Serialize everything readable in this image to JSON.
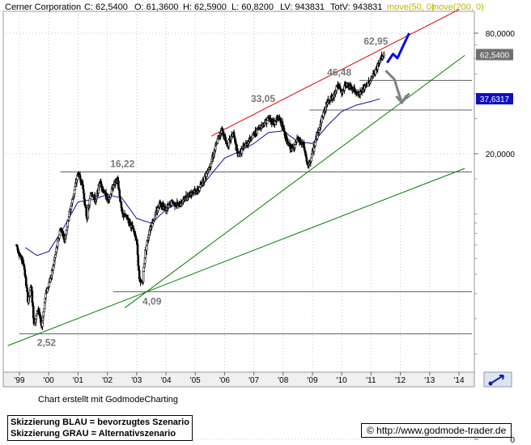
{
  "header": {
    "instrument": "Cerner Corporation",
    "close_label": "C: 62,5400",
    "open_label": "O: 61,3600",
    "high_label": "H: 62,5900",
    "low_label": "L: 60,8200",
    "lv_label": "LV: 943831",
    "totv_label": "TotV: 943831",
    "ma50_label": "move(50, 0)",
    "ma200_label": "move(200, 0)"
  },
  "colors": {
    "price": "#000000",
    "ma50": "#b8b800",
    "ma200": "#b8b800",
    "ma_line": "#1010a0",
    "resistance": "#dd0000",
    "support": "#008000",
    "blue_scenario": "#0000ee",
    "grey_scenario": "#808080"
  },
  "chart_data": {
    "type": "candlestick",
    "x_ticks": [
      "'99",
      "'00",
      "'01",
      "'02",
      "'03",
      "'04",
      "'05",
      "'06",
      "'07",
      "'08",
      "'09",
      "'10",
      "'11",
      "'12",
      "'13",
      "'14"
    ],
    "y_axis": {
      "scale": "log",
      "ticks": [
        {
          "label": "80,0000",
          "value": 80
        },
        {
          "label": "20,0000",
          "value": 20
        },
        {
          "label": "0",
          "value": 0.75
        }
      ],
      "last_price_label": "62,5400",
      "last_price_value": 62.54,
      "ma_value_label": "37,6317",
      "ma_value": 37.6317
    },
    "price_path": [
      [
        1998.9,
        7.0
      ],
      [
        1999.0,
        6.3
      ],
      [
        1999.15,
        5.6
      ],
      [
        1999.3,
        3.6
      ],
      [
        1999.4,
        4.4
      ],
      [
        1999.5,
        2.8
      ],
      [
        1999.65,
        3.4
      ],
      [
        1999.75,
        2.7
      ],
      [
        1999.9,
        4.0
      ],
      [
        2000.1,
        5.0
      ],
      [
        2000.25,
        6.5
      ],
      [
        2000.4,
        8.5
      ],
      [
        2000.55,
        7.5
      ],
      [
        2000.7,
        10.0
      ],
      [
        2000.85,
        12.5
      ],
      [
        2001.0,
        16.0
      ],
      [
        2001.15,
        14.0
      ],
      [
        2001.3,
        9.5
      ],
      [
        2001.45,
        13.0
      ],
      [
        2001.6,
        11.5
      ],
      [
        2001.75,
        14.5
      ],
      [
        2001.9,
        12.8
      ],
      [
        2002.05,
        11.5
      ],
      [
        2002.2,
        14.0
      ],
      [
        2002.35,
        15.0
      ],
      [
        2002.5,
        10.0
      ],
      [
        2002.7,
        9.5
      ],
      [
        2002.85,
        8.5
      ],
      [
        2003.0,
        7.5
      ],
      [
        2003.1,
        4.5
      ],
      [
        2003.2,
        4.6
      ],
      [
        2003.3,
        6.5
      ],
      [
        2003.45,
        8.5
      ],
      [
        2003.6,
        9.5
      ],
      [
        2003.8,
        11.5
      ],
      [
        2004.0,
        10.5
      ],
      [
        2004.2,
        11.5
      ],
      [
        2004.45,
        11.0
      ],
      [
        2004.65,
        12.0
      ],
      [
        2004.9,
        13.0
      ],
      [
        2005.1,
        13.0
      ],
      [
        2005.3,
        15.0
      ],
      [
        2005.5,
        17.5
      ],
      [
        2005.75,
        23.0
      ],
      [
        2005.9,
        26.5
      ],
      [
        2006.1,
        22.0
      ],
      [
        2006.3,
        25.5
      ],
      [
        2006.45,
        19.5
      ],
      [
        2006.6,
        21.0
      ],
      [
        2006.75,
        22.5
      ],
      [
        2006.9,
        24.0
      ],
      [
        2007.1,
        26.0
      ],
      [
        2007.3,
        28.0
      ],
      [
        2007.5,
        30.0
      ],
      [
        2007.7,
        28.5
      ],
      [
        2007.85,
        30.5
      ],
      [
        2008.0,
        27.0
      ],
      [
        2008.15,
        22.5
      ],
      [
        2008.3,
        21.0
      ],
      [
        2008.5,
        23.5
      ],
      [
        2008.7,
        22.0
      ],
      [
        2008.85,
        17.0
      ],
      [
        2008.95,
        19.0
      ],
      [
        2009.15,
        24.5
      ],
      [
        2009.35,
        31.0
      ],
      [
        2009.55,
        37.5
      ],
      [
        2009.7,
        38.0
      ],
      [
        2009.85,
        44.5
      ],
      [
        2010.0,
        40.0
      ],
      [
        2010.15,
        45.0
      ],
      [
        2010.3,
        42.5
      ],
      [
        2010.45,
        41.0
      ],
      [
        2010.6,
        39.5
      ],
      [
        2010.8,
        43.0
      ],
      [
        2010.95,
        46.0
      ],
      [
        2011.1,
        50.0
      ],
      [
        2011.25,
        56.0
      ],
      [
        2011.35,
        60.0
      ],
      [
        2011.45,
        62.54
      ]
    ],
    "ma_path": [
      [
        1999.2,
        6.8
      ],
      [
        1999.6,
        6.2
      ],
      [
        2000.0,
        6.5
      ],
      [
        2000.5,
        8.5
      ],
      [
        2001.0,
        11.5
      ],
      [
        2001.5,
        11.8
      ],
      [
        2002.0,
        12.5
      ],
      [
        2002.5,
        12.0
      ],
      [
        2003.0,
        9.5
      ],
      [
        2003.5,
        9.0
      ],
      [
        2004.0,
        10.5
      ],
      [
        2004.5,
        11.5
      ],
      [
        2005.0,
        12.5
      ],
      [
        2005.5,
        15.5
      ],
      [
        2006.0,
        19.0
      ],
      [
        2006.5,
        20.5
      ],
      [
        2007.0,
        22.5
      ],
      [
        2007.5,
        25.5
      ],
      [
        2008.0,
        26.0
      ],
      [
        2008.5,
        23.0
      ],
      [
        2009.0,
        22.5
      ],
      [
        2009.5,
        27.5
      ],
      [
        2010.0,
        32.5
      ],
      [
        2010.5,
        35.0
      ],
      [
        2011.0,
        36.5
      ],
      [
        2011.3,
        37.63
      ]
    ],
    "horizontal_levels": [
      {
        "value": 2.52,
        "label": "2,52",
        "x_start": 1999.0
      },
      {
        "value": 4.09,
        "label": "4,09",
        "x_start": 2002.2
      },
      {
        "value": 16.22,
        "label": "16,22",
        "x_start": 2000.4
      },
      {
        "value": 33.05,
        "label": "33,05",
        "x_start": 2008.9
      },
      {
        "value": 46.48,
        "label": "46,48",
        "x_start": 2010.6
      }
    ],
    "peak_label": {
      "label": "62,95",
      "value": 62.95
    },
    "trendlines": [
      {
        "kind": "resistance",
        "color": "#dd0000",
        "from": [
          2005.55,
          24.5
        ],
        "to": [
          2014.0,
          105.0
        ]
      },
      {
        "kind": "support",
        "color": "#008000",
        "from": [
          2002.6,
          3.4
        ],
        "to": [
          2014.2,
          62.0
        ]
      },
      {
        "kind": "support",
        "color": "#008000",
        "from": [
          1998.6,
          2.2
        ],
        "to": [
          2014.2,
          16.9
        ]
      }
    ],
    "scenarios": {
      "blue": [
        [
          2011.55,
          57.0
        ],
        [
          2011.75,
          63.0
        ],
        [
          2011.9,
          60.0
        ],
        [
          2012.3,
          80.0
        ]
      ],
      "grey": [
        [
          2011.5,
          52.0
        ],
        [
          2011.8,
          47.0
        ],
        [
          2011.9,
          42.0
        ],
        [
          2012.05,
          36.0
        ],
        [
          2012.3,
          40.0
        ]
      ]
    }
  },
  "footer": {
    "credit": "Chart erstellt mit GodmodeCharting",
    "legend_blue": "Skizzierung BLAU = bevorzugtes Szenario",
    "legend_grey": "Skizzierung GRAU = Alternativszenario",
    "url": "© http://www.godmode-trader.de"
  },
  "icons": {
    "corner": "zoom-arrow-icon"
  }
}
